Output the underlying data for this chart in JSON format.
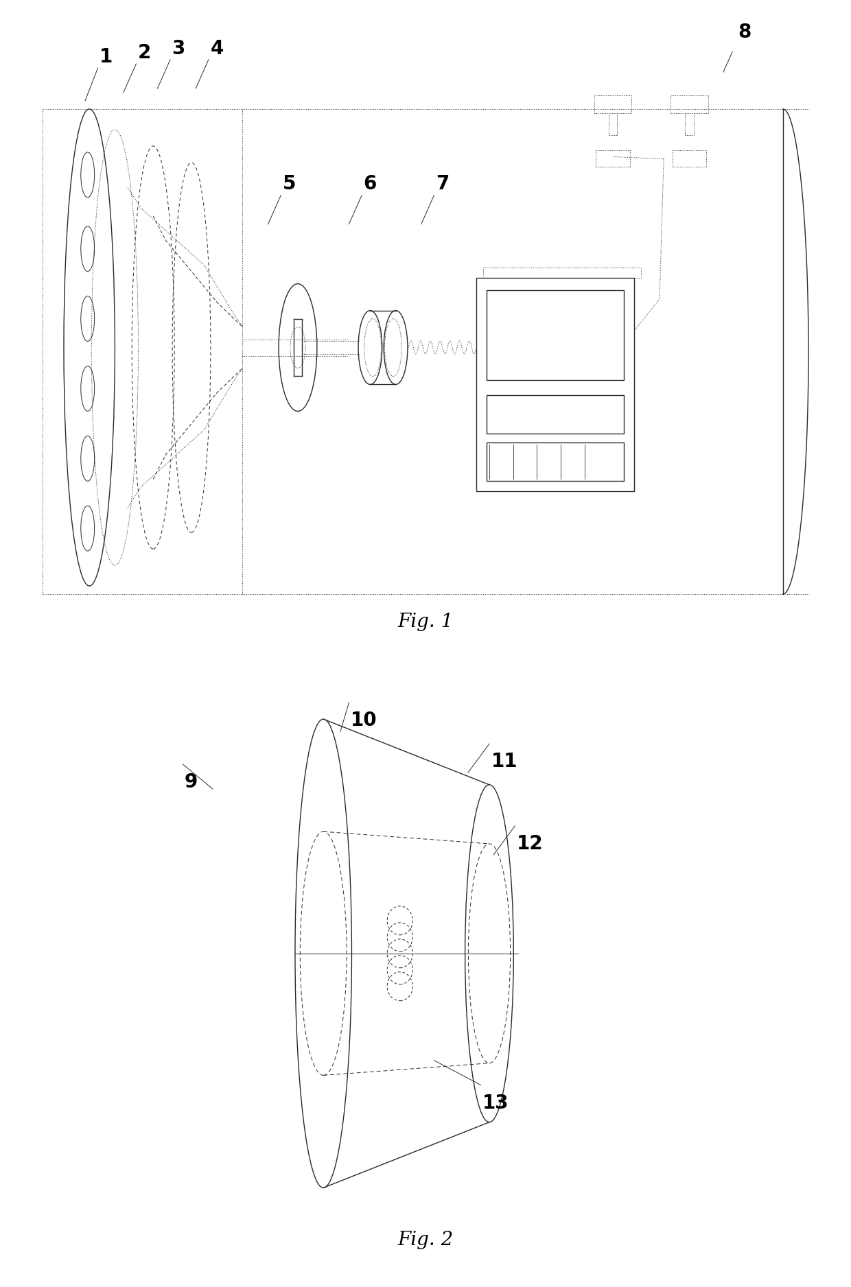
{
  "fig1_caption": "Fig. 1",
  "fig2_caption": "Fig. 2",
  "line_color": "#2a2a2a",
  "bg_color": "#ffffff",
  "label_fontsize": 20,
  "caption_fontsize": 20
}
